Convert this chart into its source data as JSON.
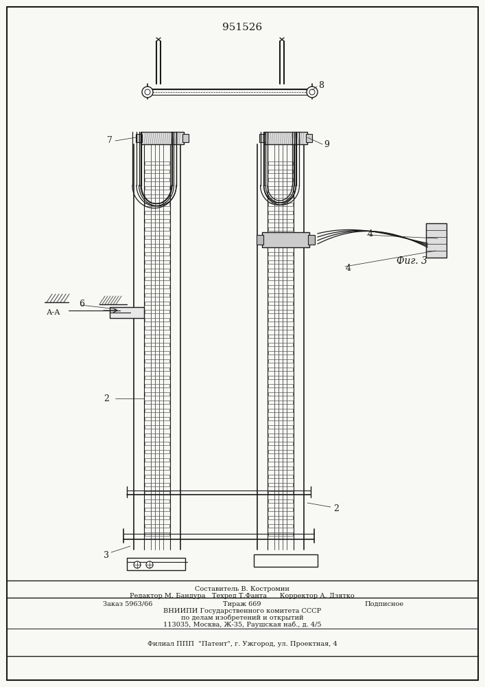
{
  "patent_number": "951526",
  "fig_label": "Фиг. 3",
  "bg_color": "#f8f8f5",
  "line_color": "#1a1a1a",
  "footer": {
    "line1": "Составитель В. Костромин",
    "line2": "Редактор М. Бандура   Техред Т.Фанта      Корректор А. Дзятко",
    "line3a": "Заказ 5963/66",
    "line3b": "Тираж 669",
    "line3c": "Подписное",
    "line4": "ВНИИПИ Государственного комитета СССР",
    "line5": "по делам изобретений и открытий",
    "line6": "113035, Москва, Ж-35, Раушская наб., д. 4/5",
    "line7": "Филиал ППП  \"Патент\", г. Ужгород, ул. Проектная, 4"
  }
}
